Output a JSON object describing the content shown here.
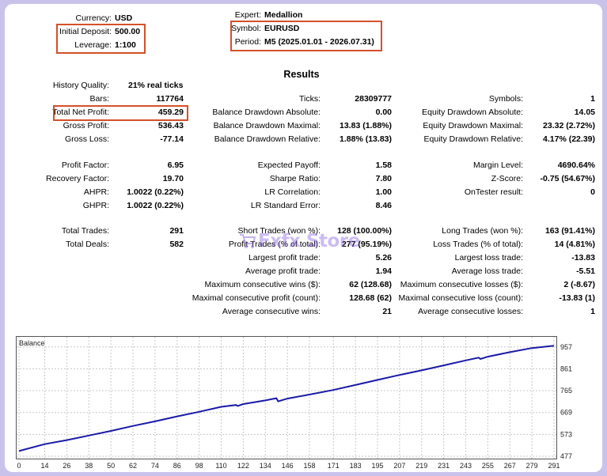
{
  "header": {
    "currency_label": "Currency:",
    "currency_value": "USD",
    "deposit_label": "Initial Deposit:",
    "deposit_value": "500.00",
    "leverage_label": "Leverage:",
    "leverage_value": "1:100",
    "expert_label": "Expert:",
    "expert_value": "Medallion",
    "symbol_label": "Symbol:",
    "symbol_value": "EURUSD",
    "period_label": "Period:",
    "period_value": "M5 (2025.01.01 - 2026.07.31)"
  },
  "results_title": "Results",
  "stats": {
    "history_quality": {
      "label": "History Quality:",
      "value": "21% real ticks"
    },
    "bars": {
      "label": "Bars:",
      "value": "117764"
    },
    "ticks": {
      "label": "Ticks:",
      "value": "28309777"
    },
    "symbols": {
      "label": "Symbols:",
      "value": "1"
    },
    "total_net_profit": {
      "label": "Total Net Profit:",
      "value": "459.29"
    },
    "balance_dd_abs": {
      "label": "Balance Drawdown Absolute:",
      "value": "0.00"
    },
    "equity_dd_abs": {
      "label": "Equity Drawdown Absolute:",
      "value": "14.05"
    },
    "gross_profit": {
      "label": "Gross Profit:",
      "value": "536.43"
    },
    "balance_dd_max": {
      "label": "Balance Drawdown Maximal:",
      "value": "13.83 (1.88%)"
    },
    "equity_dd_max": {
      "label": "Equity Drawdown Maximal:",
      "value": "23.32 (2.72%)"
    },
    "gross_loss": {
      "label": "Gross Loss:",
      "value": "-77.14"
    },
    "balance_dd_rel": {
      "label": "Balance Drawdown Relative:",
      "value": "1.88% (13.83)"
    },
    "equity_dd_rel": {
      "label": "Equity Drawdown Relative:",
      "value": "4.17% (22.39)"
    },
    "profit_factor": {
      "label": "Profit Factor:",
      "value": "6.95"
    },
    "expected_payoff": {
      "label": "Expected Payoff:",
      "value": "1.58"
    },
    "margin_level": {
      "label": "Margin Level:",
      "value": "4690.64%"
    },
    "recovery_factor": {
      "label": "Recovery Factor:",
      "value": "19.70"
    },
    "sharpe_ratio": {
      "label": "Sharpe Ratio:",
      "value": "7.80"
    },
    "z_score": {
      "label": "Z-Score:",
      "value": "-0.75 (54.67%)"
    },
    "ahpr": {
      "label": "AHPR:",
      "value": "1.0022 (0.22%)"
    },
    "lr_correlation": {
      "label": "LR Correlation:",
      "value": "1.00"
    },
    "ontester": {
      "label": "OnTester result:",
      "value": "0"
    },
    "ghpr": {
      "label": "GHPR:",
      "value": "1.0022 (0.22%)"
    },
    "lr_std_error": {
      "label": "LR Standard Error:",
      "value": "8.46"
    },
    "total_trades": {
      "label": "Total Trades:",
      "value": "291"
    },
    "short_trades": {
      "label": "Short Trades (won %):",
      "value": "128 (100.00%)"
    },
    "long_trades": {
      "label": "Long Trades (won %):",
      "value": "163 (91.41%)"
    },
    "total_deals": {
      "label": "Total Deals:",
      "value": "582"
    },
    "profit_trades": {
      "label": "Profit Trades (% of total):",
      "value": "277 (95.19%)"
    },
    "loss_trades": {
      "label": "Loss Trades (% of total):",
      "value": "14 (4.81%)"
    },
    "largest_profit": {
      "label": "Largest profit trade:",
      "value": "5.26"
    },
    "largest_loss": {
      "label": "Largest loss trade:",
      "value": "-13.83"
    },
    "average_profit": {
      "label": "Average profit trade:",
      "value": "1.94"
    },
    "average_loss": {
      "label": "Average loss trade:",
      "value": "-5.51"
    },
    "max_consec_wins": {
      "label": "Maximum consecutive wins ($):",
      "value": "62 (128.68)"
    },
    "max_consec_losses": {
      "label": "Maximum consecutive losses ($):",
      "value": "2 (-8.67)"
    },
    "maximal_consec_profit": {
      "label": "Maximal consecutive profit (count):",
      "value": "128.68 (62)"
    },
    "maximal_consec_loss": {
      "label": "Maximal consecutive loss (count):",
      "value": "-13.83 (1)"
    },
    "avg_consec_wins": {
      "label": "Average consecutive wins:",
      "value": "21"
    },
    "avg_consec_losses": {
      "label": "Average consecutive losses:",
      "value": "1"
    }
  },
  "watermark": {
    "text": "Fxfx Store",
    "icon": "cart-icon"
  },
  "colors": {
    "highlight": "#d4502a",
    "line": "#1a1aa8",
    "background": "#c9c3ec"
  },
  "chart_data": {
    "type": "line",
    "title": "Balance",
    "x_ticks": [
      "0",
      "14",
      "26",
      "38",
      "50",
      "62",
      "74",
      "86",
      "98",
      "110",
      "122",
      "134",
      "146",
      "158",
      "171",
      "183",
      "195",
      "207",
      "219",
      "231",
      "243",
      "255",
      "267",
      "279",
      "291"
    ],
    "y_ticks": [
      "477",
      "573",
      "669",
      "765",
      "861",
      "957"
    ],
    "xlim": [
      0,
      291
    ],
    "ylim": [
      477,
      977
    ],
    "grid": true,
    "series": [
      {
        "x": [
          0,
          14,
          26,
          38,
          50,
          62,
          74,
          86,
          98,
          110,
          118,
          119,
          122,
          134,
          140,
          141,
          146,
          158,
          171,
          183,
          195,
          207,
          219,
          231,
          243,
          250,
          251,
          255,
          267,
          279,
          291
        ],
        "y": [
          500,
          530,
          548,
          568,
          588,
          610,
          630,
          652,
          672,
          694,
          702,
          698,
          706,
          722,
          732,
          718,
          730,
          748,
          768,
          790,
          812,
          834,
          854,
          876,
          898,
          910,
          904,
          914,
          934,
          952,
          962
        ]
      }
    ]
  }
}
